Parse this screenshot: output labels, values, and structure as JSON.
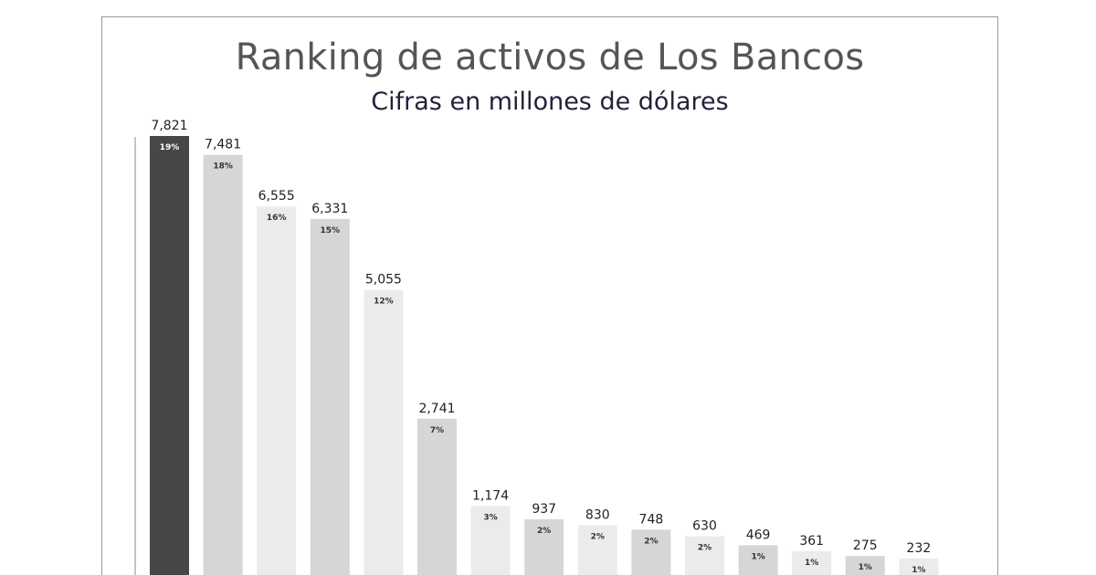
{
  "header": {
    "title": "Ranking de activos de Los Bancos",
    "subtitle": "Cifras en millones de dólares"
  },
  "colors": {
    "highlight": "#474747",
    "dark_gray": "#d6d6d6",
    "light_gray": "#ebebeb",
    "value_text": "#222222",
    "percent_text_light": "#ffffff",
    "percent_text_dark": "#333333"
  },
  "chart_data": {
    "type": "bar",
    "title": "Ranking de activos de Los Bancos",
    "subtitle": "Cifras en millones de dólares",
    "values": [
      7821,
      7481,
      6555,
      6331,
      5055,
      2741,
      1174,
      937,
      830,
      748,
      630,
      469,
      361,
      275,
      232
    ],
    "value_labels": [
      "7,821",
      "7,481",
      "6,555",
      "6,331",
      "5,055",
      "2,741",
      "1,174",
      "937",
      "830",
      "748",
      "630",
      "469",
      "361",
      "275",
      "232"
    ],
    "percent_labels": [
      "19%",
      "18%",
      "16%",
      "15%",
      "12%",
      "7%",
      "3%",
      "2%",
      "2%",
      "2%",
      "2%",
      "1%",
      "1%",
      "1%",
      "1%"
    ],
    "bar_shades": [
      "highlight",
      "dark_gray",
      "light_gray",
      "dark_gray",
      "light_gray",
      "dark_gray",
      "light_gray",
      "dark_gray",
      "light_gray",
      "dark_gray",
      "light_gray",
      "dark_gray",
      "light_gray",
      "dark_gray",
      "light_gray"
    ],
    "ylim": [
      0,
      8200
    ],
    "grid": false,
    "legend": "none"
  }
}
